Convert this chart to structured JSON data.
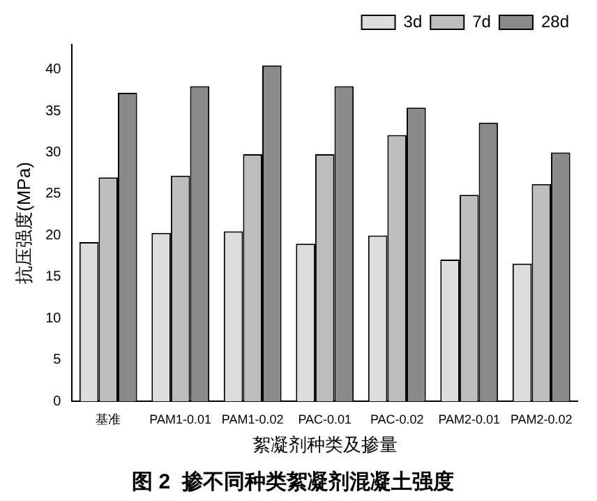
{
  "chart_data": {
    "type": "bar",
    "title": "图 2  掺不同种类絮凝剂混凝土强度",
    "xlabel": "絮凝剂种类及掺量",
    "ylabel": "抗压强度(MPa)",
    "categories": [
      "基准",
      "PAM1-0.01",
      "PAM1-0.02",
      "PAC-0.01",
      "PAC-0.02",
      "PAM2-0.01",
      "PAM2-0.02"
    ],
    "series": [
      {
        "name": "3d",
        "color": "#dddddd",
        "values": [
          19.2,
          20.3,
          20.5,
          19.0,
          20.0,
          17.1,
          16.6
        ]
      },
      {
        "name": "7d",
        "color": "#bdbdbd",
        "values": [
          27.0,
          27.2,
          29.8,
          29.8,
          32.1,
          24.9,
          26.2
        ]
      },
      {
        "name": "28d",
        "color": "#8a8a8a",
        "values": [
          37.2,
          38.0,
          40.5,
          38.0,
          35.4,
          33.6,
          30.0
        ]
      }
    ],
    "ylim": [
      0,
      43
    ],
    "yticks": [
      0,
      5,
      10,
      15,
      20,
      25,
      30,
      35,
      40
    ],
    "grid": false,
    "legend": "top right"
  }
}
